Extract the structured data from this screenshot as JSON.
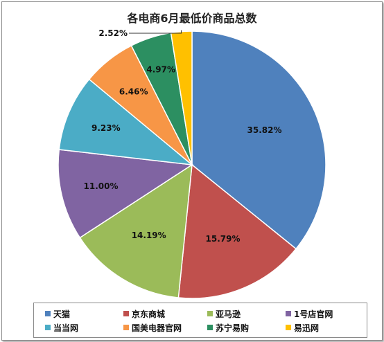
{
  "chart_data": {
    "type": "pie",
    "title": "各电商6月最低价商品总数",
    "categories": [
      "天猫",
      "京东商城",
      "亚马逊",
      "1号店官网",
      "当当网",
      "国美电器官网",
      "苏宁易购",
      "易迅网"
    ],
    "values": [
      35.82,
      15.79,
      14.19,
      11.0,
      9.23,
      6.46,
      4.97,
      2.52
    ],
    "data_labels": [
      "35.82%",
      "15.79%",
      "14.19%",
      "11.00%",
      "9.23%",
      "6.46%",
      "4.97%",
      "2.52%"
    ],
    "colors": [
      "#4F81BD",
      "#C0504D",
      "#9BBB59",
      "#8064A2",
      "#4BACC6",
      "#F79646",
      "#2C8F61",
      "#FFC000"
    ],
    "legend_position": "bottom",
    "start_angle": "12 o'clock",
    "direction": "clockwise"
  }
}
